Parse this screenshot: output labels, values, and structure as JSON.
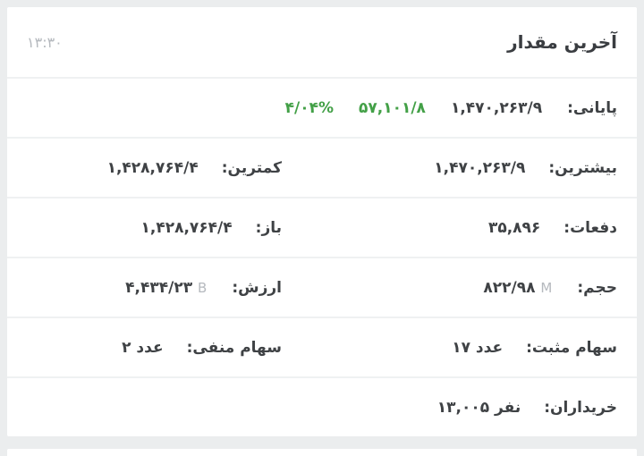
{
  "header": {
    "title": "آخرین مقدار",
    "time": "۱۳:۳۰"
  },
  "rows": [
    {
      "right": {
        "label": "پایانی:",
        "value": "۱,۴۷۰,۲۶۳/۹",
        "change": "۵۷,۱۰۱/۸",
        "change_pct": "۴/۰۴%"
      }
    },
    {
      "right": {
        "label": "بیشترین:",
        "value": "۱,۴۷۰,۲۶۳/۹"
      },
      "left": {
        "label": "کمترین:",
        "value": "۱,۴۲۸,۷۶۴/۴"
      }
    },
    {
      "right": {
        "label": "دفعات:",
        "value": "۳۵,۸۹۶"
      },
      "left": {
        "label": "باز:",
        "value": "۱,۴۲۸,۷۶۴/۴"
      }
    },
    {
      "right": {
        "label": "حجم:",
        "value": "۸۲۲/۹۸",
        "unit": "M"
      },
      "left": {
        "label": "ارزش:",
        "value": "۴,۴۳۴/۲۳",
        "unit": "B"
      }
    },
    {
      "right": {
        "label": "سهام مثبت:",
        "value": "۱۷ عدد"
      },
      "left": {
        "label": "سهام منفی:",
        "value": "۲ عدد"
      }
    },
    {
      "right": {
        "label": "خریداران:",
        "value": "۱۳,۰۰۵ نفر"
      }
    }
  ],
  "colors": {
    "positive_green": "#43a047",
    "unit_gray": "#b5b9be",
    "text_dark": "#3f4245",
    "page_bg": "#ebedee"
  }
}
